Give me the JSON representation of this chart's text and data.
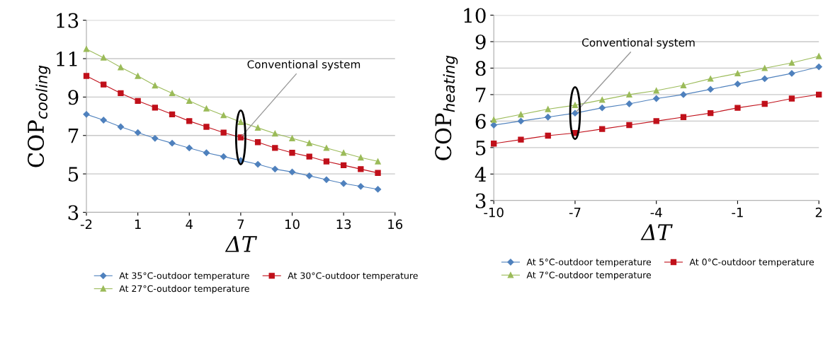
{
  "chart_data": [
    {
      "type": "line",
      "xlabel": "ΔT",
      "ylabel": "COP$_{cooling}$",
      "x": [
        -2,
        -1,
        0,
        1,
        2,
        3,
        4,
        5,
        6,
        7,
        8,
        9,
        10,
        11,
        12,
        13,
        14,
        15
      ],
      "xlim": [
        -2,
        16
      ],
      "xticks": [
        -2,
        1,
        4,
        7,
        10,
        13,
        16
      ],
      "ylim": [
        3,
        13
      ],
      "yticks": [
        3,
        5,
        7,
        9,
        11,
        13
      ],
      "grid": "y",
      "legend": "bottom",
      "line_style": "solid",
      "annotations": [
        {
          "text": "Conventional system",
          "x": 7,
          "y": 6.9
        }
      ],
      "series": [
        {
          "name": "At 35°C-outdoor temperature",
          "color": "#4f81bd",
          "marker": "diamond",
          "values": [
            8.1,
            7.8,
            7.45,
            7.15,
            6.85,
            6.6,
            6.35,
            6.1,
            5.9,
            5.7,
            5.5,
            5.25,
            5.1,
            4.9,
            4.7,
            4.5,
            4.35,
            4.2
          ]
        },
        {
          "name": "At 30°C-outdoor temperature",
          "color": "#c0101a",
          "marker": "square",
          "values": [
            10.1,
            9.65,
            9.2,
            8.8,
            8.45,
            8.1,
            7.75,
            7.45,
            7.15,
            6.9,
            6.65,
            6.35,
            6.1,
            5.9,
            5.65,
            5.45,
            5.25,
            5.05
          ]
        },
        {
          "name": "At 27°C-outdoor temperature",
          "color": "#9bbb59",
          "marker": "triangle",
          "values": [
            11.5,
            11.05,
            10.55,
            10.1,
            9.6,
            9.2,
            8.8,
            8.4,
            8.05,
            7.7,
            7.4,
            7.1,
            6.85,
            6.6,
            6.35,
            6.1,
            5.85,
            5.65
          ]
        }
      ]
    },
    {
      "type": "line",
      "xlabel": "ΔT",
      "ylabel": "COP$_{heating}$",
      "x": [
        -10,
        -9,
        -8,
        -7,
        -6,
        -5,
        -4,
        -3,
        -2,
        -1,
        0,
        1,
        2
      ],
      "xlim": [
        -10,
        2
      ],
      "xticks": [
        -10,
        -7,
        -4,
        -1,
        2
      ],
      "ylim": [
        3,
        10
      ],
      "yticks": [
        3,
        4,
        5,
        6,
        7,
        8,
        9,
        10
      ],
      "grid": "y",
      "legend": "bottom",
      "line_style": "solid",
      "annotations": [
        {
          "text": "Conventional system",
          "x": -7,
          "y": 6.3
        }
      ],
      "series": [
        {
          "name": "At 5°C-outdoor temperature",
          "color": "#4f81bd",
          "marker": "diamond",
          "values": [
            5.85,
            6.0,
            6.15,
            6.3,
            6.5,
            6.65,
            6.85,
            7.0,
            7.2,
            7.4,
            7.6,
            7.8,
            8.05
          ]
        },
        {
          "name": "At 0°C-outdoor temperature",
          "color": "#c0101a",
          "marker": "square",
          "values": [
            5.15,
            5.3,
            5.45,
            5.55,
            5.7,
            5.85,
            6.0,
            6.15,
            6.3,
            6.5,
            6.65,
            6.85,
            7.0
          ]
        },
        {
          "name": "At 7°C-outdoor temperature",
          "color": "#9bbb59",
          "marker": "triangle",
          "values": [
            6.05,
            6.25,
            6.45,
            6.6,
            6.8,
            7.0,
            7.15,
            7.35,
            7.6,
            7.8,
            8.0,
            8.2,
            8.45
          ]
        }
      ]
    }
  ]
}
